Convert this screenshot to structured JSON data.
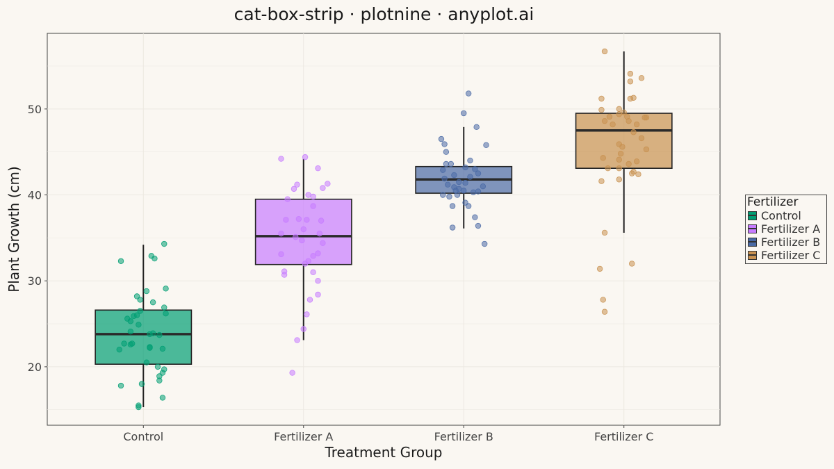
{
  "chart_data": {
    "type": "box-strip",
    "title": "cat-box-strip · plotnine · anyplot.ai",
    "xlabel": "Treatment Group",
    "ylabel": "Plant Growth (cm)",
    "categories": [
      "Control",
      "Fertilizer A",
      "Fertilizer B",
      "Fertilizer C"
    ],
    "ylim": [
      13.2,
      58.8
    ],
    "yticks": [
      20,
      30,
      40,
      50
    ],
    "grid": true,
    "legend": {
      "title": "Fertilizer",
      "placement": "right"
    },
    "colors": {
      "Control": "#009e73",
      "Fertilizer A": "#c77cff",
      "Fertilizer B": "#4a6aa5",
      "Fertilizer C": "#c89150"
    },
    "series": [
      {
        "name": "Control",
        "box": {
          "lower_whisker": 15.3,
          "q1": 20.3,
          "median": 23.8,
          "q3": 26.6,
          "upper_whisker": 34.2
        },
        "points": [
          [
            -0.14,
            32.3
          ],
          [
            -0.04,
            28.2
          ],
          [
            -0.02,
            27.8
          ],
          [
            0.02,
            28.8
          ],
          [
            0.05,
            32.9
          ],
          [
            0.07,
            32.6
          ],
          [
            0.13,
            34.3
          ],
          [
            0.14,
            29.1
          ],
          [
            0.13,
            26.9
          ],
          [
            0.14,
            26.2
          ],
          [
            0.06,
            27.5
          ],
          [
            -0.02,
            26.5
          ],
          [
            -0.1,
            25.6
          ],
          [
            -0.06,
            25.9
          ],
          [
            -0.04,
            26.0
          ],
          [
            -0.08,
            25.3
          ],
          [
            -0.03,
            24.9
          ],
          [
            -0.08,
            24.1
          ],
          [
            0.04,
            23.8
          ],
          [
            0.06,
            23.9
          ],
          [
            0.1,
            23.7
          ],
          [
            -0.12,
            22.7
          ],
          [
            -0.08,
            22.6
          ],
          [
            -0.07,
            22.7
          ],
          [
            0.04,
            22.2
          ],
          [
            0.04,
            22.3
          ],
          [
            0.12,
            22.1
          ],
          [
            -0.15,
            22.0
          ],
          [
            0.02,
            20.5
          ],
          [
            0.09,
            20.0
          ],
          [
            0.13,
            19.7
          ],
          [
            0.12,
            19.3
          ],
          [
            0.1,
            18.9
          ],
          [
            0.1,
            18.4
          ],
          [
            -0.14,
            17.8
          ],
          [
            -0.01,
            18.0
          ],
          [
            0.12,
            16.4
          ],
          [
            -0.03,
            15.5
          ],
          [
            -0.03,
            15.3
          ]
        ]
      },
      {
        "name": "Fertilizer A",
        "box": {
          "lower_whisker": 23.1,
          "q1": 31.9,
          "median": 35.2,
          "q3": 39.5,
          "upper_whisker": 44.2
        },
        "points": [
          [
            -0.14,
            44.2
          ],
          [
            0.01,
            44.4
          ],
          [
            0.09,
            43.1
          ],
          [
            0.15,
            41.3
          ],
          [
            0.12,
            40.8
          ],
          [
            -0.04,
            41.2
          ],
          [
            -0.06,
            40.7
          ],
          [
            0.03,
            40.0
          ],
          [
            0.06,
            39.8
          ],
          [
            -0.1,
            39.5
          ],
          [
            0.06,
            38.7
          ],
          [
            -0.11,
            37.1
          ],
          [
            -0.03,
            37.2
          ],
          [
            0.02,
            37.1
          ],
          [
            0.11,
            37.0
          ],
          [
            0.0,
            36.0
          ],
          [
            -0.14,
            35.5
          ],
          [
            0.1,
            35.5
          ],
          [
            -0.05,
            35.1
          ],
          [
            -0.01,
            34.7
          ],
          [
            0.12,
            34.4
          ],
          [
            0.09,
            33.2
          ],
          [
            0.06,
            32.9
          ],
          [
            -0.14,
            33.1
          ],
          [
            0.03,
            32.3
          ],
          [
            0.01,
            32.0
          ],
          [
            -0.12,
            31.1
          ],
          [
            -0.12,
            30.7
          ],
          [
            0.06,
            31.0
          ],
          [
            0.09,
            30.0
          ],
          [
            0.09,
            28.4
          ],
          [
            0.04,
            27.8
          ],
          [
            0.02,
            26.1
          ],
          [
            0.0,
            24.4
          ],
          [
            -0.04,
            23.1
          ],
          [
            -0.07,
            19.3
          ]
        ]
      },
      {
        "name": "Fertilizer B",
        "box": {
          "lower_whisker": 36.1,
          "q1": 40.2,
          "median": 41.8,
          "q3": 43.3,
          "upper_whisker": 47.9
        },
        "points": [
          [
            0.03,
            51.8
          ],
          [
            0.0,
            49.5
          ],
          [
            0.08,
            47.9
          ],
          [
            0.14,
            45.8
          ],
          [
            -0.14,
            46.5
          ],
          [
            -0.12,
            45.9
          ],
          [
            -0.11,
            45.0
          ],
          [
            0.04,
            44.0
          ],
          [
            -0.11,
            43.6
          ],
          [
            -0.13,
            42.9
          ],
          [
            -0.08,
            43.6
          ],
          [
            0.01,
            43.2
          ],
          [
            0.07,
            43.0
          ],
          [
            -0.06,
            42.3
          ],
          [
            0.09,
            42.5
          ],
          [
            0.04,
            42.1
          ],
          [
            -0.12,
            41.9
          ],
          [
            -0.1,
            41.2
          ],
          [
            -0.06,
            40.9
          ],
          [
            -0.03,
            41.5
          ],
          [
            0.01,
            41.4
          ],
          [
            0.12,
            41.0
          ],
          [
            -0.03,
            40.7
          ],
          [
            -0.05,
            40.5
          ],
          [
            0.0,
            40.5
          ],
          [
            0.06,
            40.3
          ],
          [
            0.09,
            40.4
          ],
          [
            -0.13,
            40.0
          ],
          [
            -0.09,
            39.8
          ],
          [
            -0.04,
            40.0
          ],
          [
            0.01,
            39.1
          ],
          [
            0.03,
            38.7
          ],
          [
            -0.07,
            38.7
          ],
          [
            0.07,
            37.4
          ],
          [
            0.09,
            36.4
          ],
          [
            -0.07,
            36.2
          ],
          [
            0.13,
            34.3
          ]
        ]
      },
      {
        "name": "Fertilizer C",
        "box": {
          "lower_whisker": 35.6,
          "q1": 43.1,
          "median": 47.5,
          "q3": 49.5,
          "upper_whisker": 56.7
        },
        "points": [
          [
            -0.12,
            56.7
          ],
          [
            0.04,
            54.1
          ],
          [
            0.04,
            53.2
          ],
          [
            0.11,
            53.6
          ],
          [
            -0.14,
            51.2
          ],
          [
            0.04,
            51.2
          ],
          [
            0.06,
            51.3
          ],
          [
            -0.03,
            50.0
          ],
          [
            -0.14,
            49.9
          ],
          [
            -0.09,
            49.1
          ],
          [
            -0.03,
            49.4
          ],
          [
            0.0,
            49.6
          ],
          [
            0.02,
            49.1
          ],
          [
            0.13,
            49.0
          ],
          [
            0.14,
            49.0
          ],
          [
            0.03,
            48.6
          ],
          [
            0.08,
            48.2
          ],
          [
            -0.07,
            48.2
          ],
          [
            -0.12,
            48.6
          ],
          [
            0.06,
            47.3
          ],
          [
            0.11,
            46.6
          ],
          [
            -0.03,
            45.9
          ],
          [
            -0.01,
            45.6
          ],
          [
            0.14,
            45.3
          ],
          [
            -0.02,
            44.8
          ],
          [
            -0.13,
            44.3
          ],
          [
            -0.03,
            44.1
          ],
          [
            0.03,
            43.6
          ],
          [
            0.08,
            43.9
          ],
          [
            -0.03,
            43.1
          ],
          [
            -0.1,
            43.1
          ],
          [
            0.06,
            42.7
          ],
          [
            0.09,
            42.4
          ],
          [
            0.05,
            42.5
          ],
          [
            -0.14,
            41.6
          ],
          [
            -0.03,
            41.8
          ],
          [
            -0.12,
            35.6
          ],
          [
            0.05,
            32.0
          ],
          [
            -0.15,
            31.4
          ],
          [
            -0.13,
            27.8
          ],
          [
            -0.12,
            26.4
          ]
        ]
      }
    ]
  }
}
